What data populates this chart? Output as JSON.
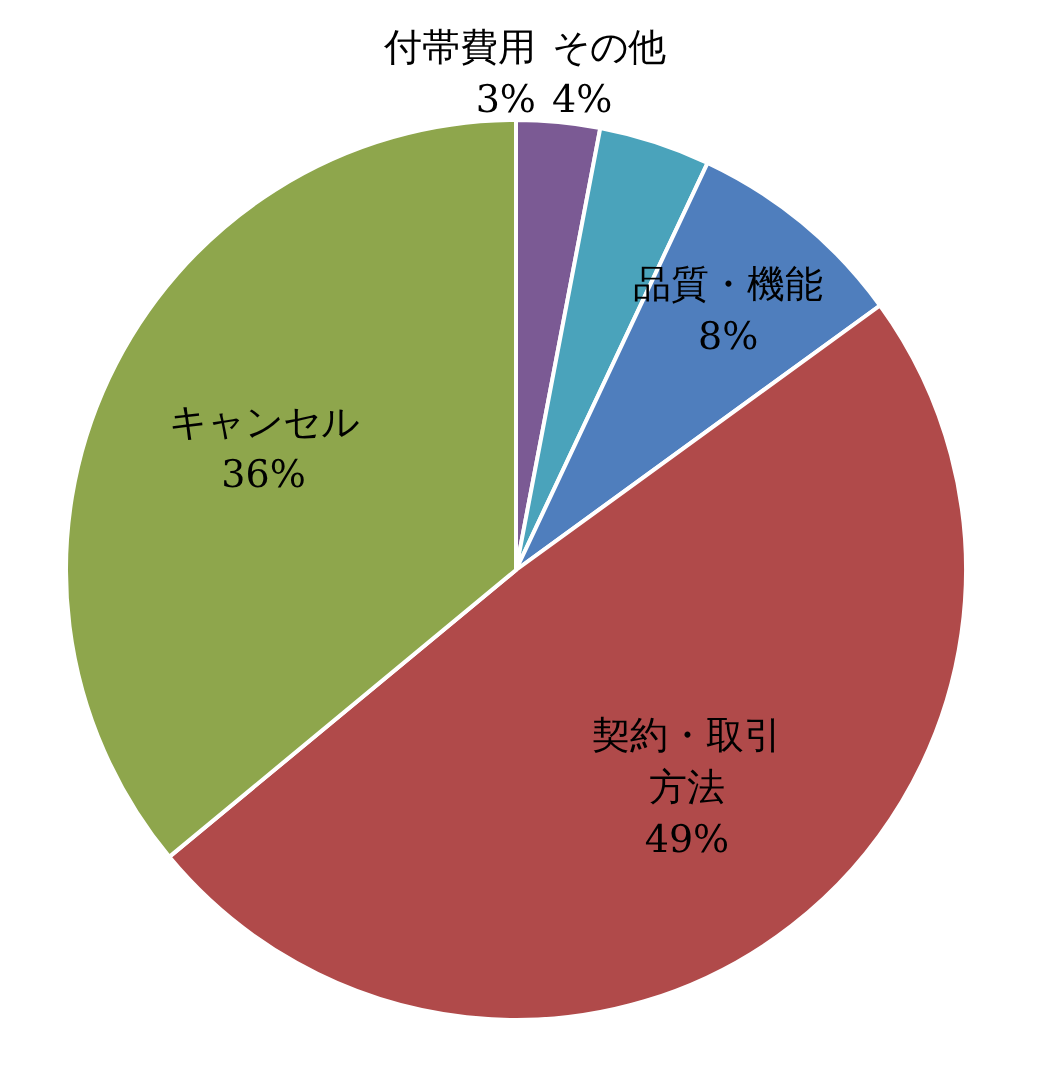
{
  "chart_data": {
    "type": "pie",
    "categories": [
      "付帯費用",
      "その他",
      "品質・機能",
      "契約・取引方法",
      "キャンセル"
    ],
    "values": [
      3,
      4,
      8,
      49,
      36
    ],
    "value_labels": [
      "3%",
      "4%",
      "8%",
      "49%",
      "36%"
    ],
    "colors": [
      "#7b5a94",
      "#4aa3bb",
      "#4f7ebd",
      "#b04a4a",
      "#8ea64c"
    ]
  }
}
